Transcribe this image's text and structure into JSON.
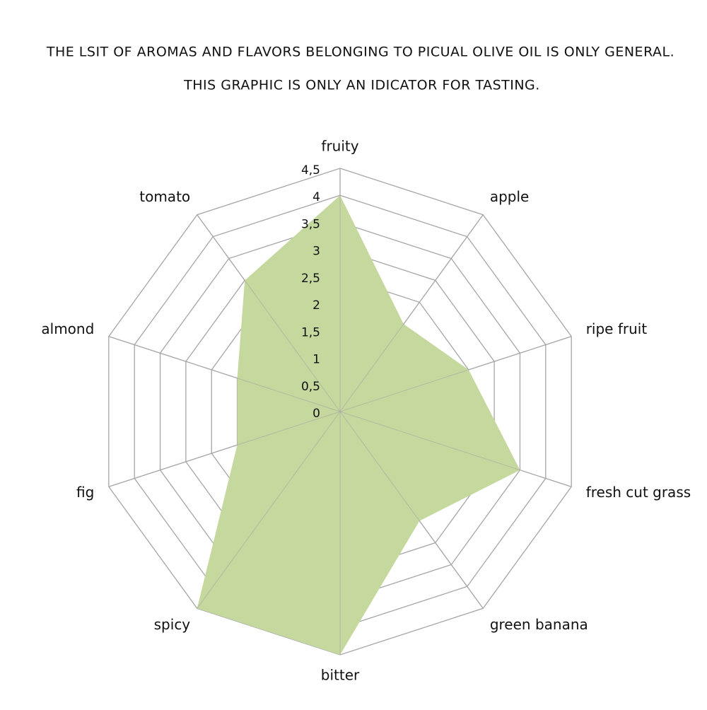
{
  "chart_data": {
    "type": "radar",
    "title_lines": [
      "THE LSIT OF AROMAS AND FLAVORS BELONGING TO PICUAL OLIVE OIL IS ONLY GENERAL.",
      "THIS GRAPHIC IS ONLY AN IDICATOR FOR TASTING."
    ],
    "categories": [
      "fruity",
      "apple",
      "ripe fruit",
      "fresh cut grass",
      "green banana",
      "bitter",
      "spicy",
      "fig",
      "almond",
      "tomato"
    ],
    "values": [
      4,
      2,
      2.5,
      3.5,
      2.5,
      4.5,
      4.5,
      2,
      2,
      3
    ],
    "color": "#c5d89d",
    "rlim": [
      0,
      4.5
    ],
    "rticks": [
      0,
      {
        "value": 0.5,
        "label": "0,5"
      },
      1,
      {
        "value": 1.5,
        "label": "1,5"
      },
      2,
      {
        "value": 2.5,
        "label": "2,5"
      },
      3,
      {
        "value": 3.5,
        "label": "3,5"
      },
      4,
      {
        "value": 4.5,
        "label": "4,5"
      }
    ],
    "grid": true
  }
}
